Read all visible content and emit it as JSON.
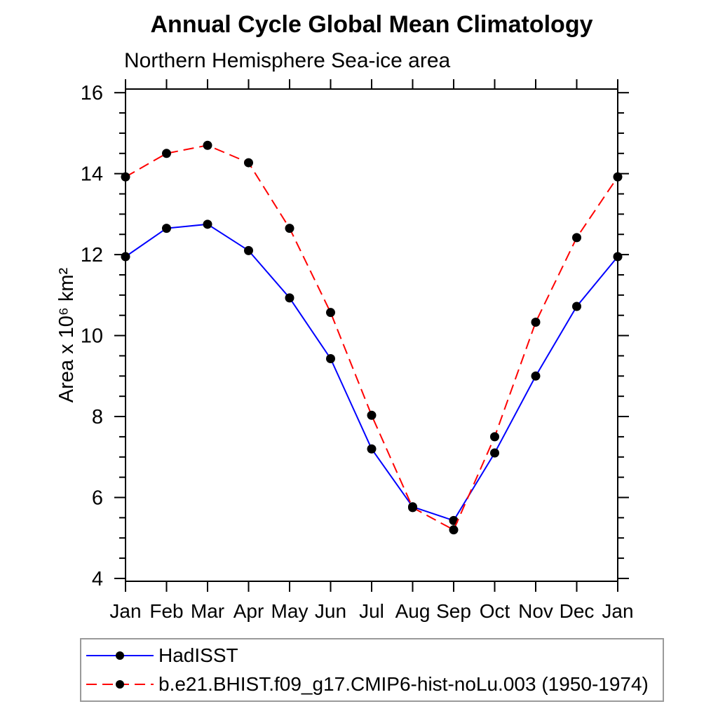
{
  "chart_data": {
    "type": "line",
    "title": "Annual Cycle Global Mean Climatology",
    "subtitle": "Northern Hemisphere Sea-ice area",
    "ylabel": "Area x 10⁶ km²",
    "x_labels": [
      "Jan",
      "Feb",
      "Mar",
      "Apr",
      "May",
      "Jun",
      "Jul",
      "Aug",
      "Sep",
      "Oct",
      "Nov",
      "Dec",
      "Jan"
    ],
    "y_ticks": [
      4,
      6,
      8,
      10,
      12,
      14,
      16
    ],
    "ylim": [
      3.93,
      16.09
    ],
    "minor_tick_step": 0.5,
    "grid": false,
    "legend_position": "bottom-left-box",
    "axis_color": "#000000",
    "marker_color": "#000000",
    "series": [
      {
        "name": "HadISST",
        "color": "#0000ff",
        "style": "solid",
        "marker": "circle",
        "values": [
          11.95,
          12.65,
          12.75,
          12.1,
          10.93,
          9.43,
          7.2,
          5.77,
          5.43,
          7.1,
          9.0,
          10.72,
          11.95
        ]
      },
      {
        "name": "b.e21.BHIST.f09_g17.CMIP6-hist-noLu.003 (1950-1974)",
        "color": "#ff0000",
        "style": "dashed",
        "marker": "circle",
        "values": [
          13.92,
          14.5,
          14.7,
          14.27,
          12.65,
          10.57,
          8.03,
          5.75,
          5.2,
          7.5,
          10.33,
          12.42,
          13.92
        ]
      }
    ]
  }
}
